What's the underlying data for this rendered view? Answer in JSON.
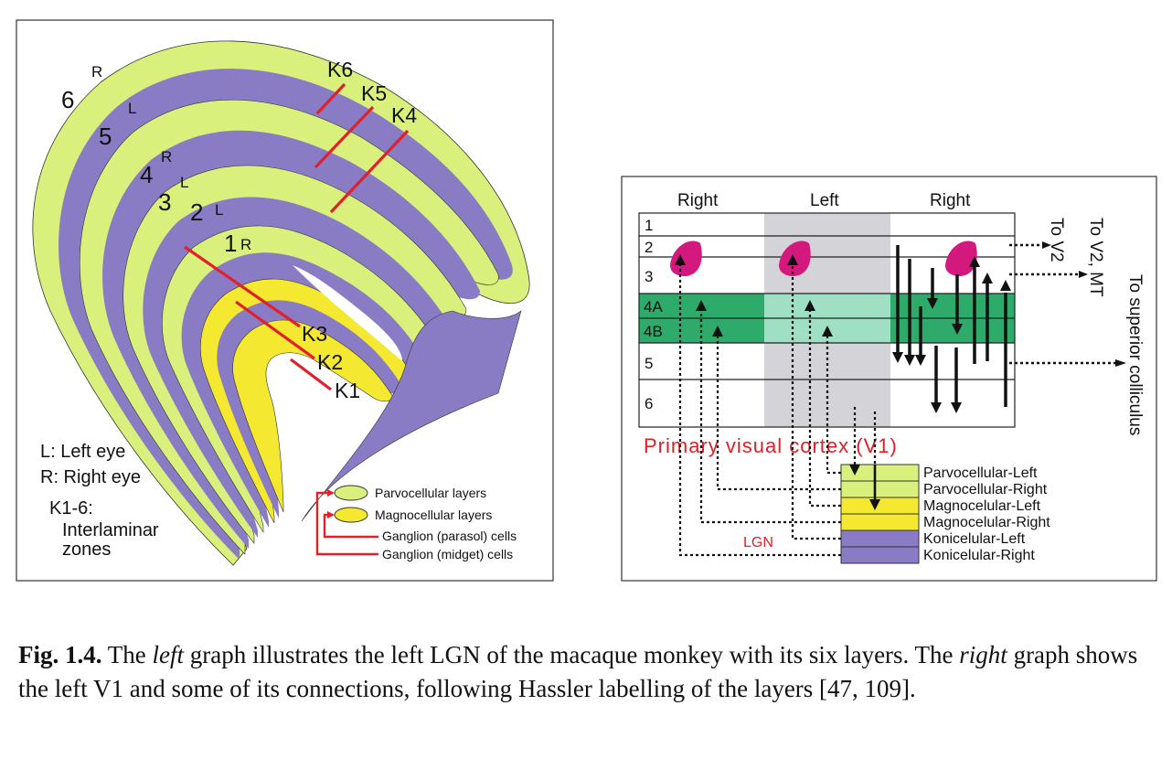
{
  "lgn_panel": {
    "layer_numbers": [
      "6",
      "5",
      "4",
      "3",
      "2",
      "1"
    ],
    "eye_letters": [
      "R",
      "L",
      "R",
      "L",
      "L",
      "R"
    ],
    "k_labels": [
      "K6",
      "K5",
      "K4",
      "K3",
      "K2",
      "K1"
    ],
    "legend_eye": {
      "left": "L: Left eye",
      "right": "R: Right eye"
    },
    "legend_k": {
      "line1": "K1-6:",
      "line2": "Interlaminar",
      "line3": "zones"
    },
    "legend_box": {
      "parvo": "Parvocellular layers",
      "magno": "Magnocellular layers",
      "parasol": "Ganglion (parasol) cells",
      "midget": "Ganglion (midget) cells"
    },
    "colors": {
      "parvo": "#d9f07c",
      "magno": "#f5e830",
      "konio": "#8a7cc4",
      "kline": "#e0202a"
    }
  },
  "v1_panel": {
    "columns": [
      "Right",
      "Left",
      "Right"
    ],
    "layers": [
      "1",
      "2",
      "3",
      "4A",
      "4B",
      "5",
      "6"
    ],
    "title": "Primary visual cortex  (V1)",
    "lgn_label": "LGN",
    "outputs": {
      "v2": "To V2",
      "v2mt": "To V2, MT",
      "sc": "To superior colliculus"
    },
    "lgn_layers": [
      "Parvocellular-Left",
      "Parvocellular-Right",
      "Magnocelular-Left",
      "Magnocelular-Right",
      "Konicelular-Left",
      "Konicelular-Right"
    ],
    "colors": {
      "layer4": "#2eaa6a",
      "layer4_light": "#9fe0c4",
      "left_column": "#d4d4d8",
      "blob": "#d4197e",
      "title": "#e01e28"
    }
  },
  "caption": {
    "label": "Fig. 1.4.",
    "t1": "The ",
    "left_word": "left",
    "t2": " graph illustrates the left LGN of the macaque monkey with its six layers. The ",
    "right_word": "right",
    "t3": " graph shows the left V1 and some of its connections, following Hassler labelling of the layers [47, 109]."
  }
}
